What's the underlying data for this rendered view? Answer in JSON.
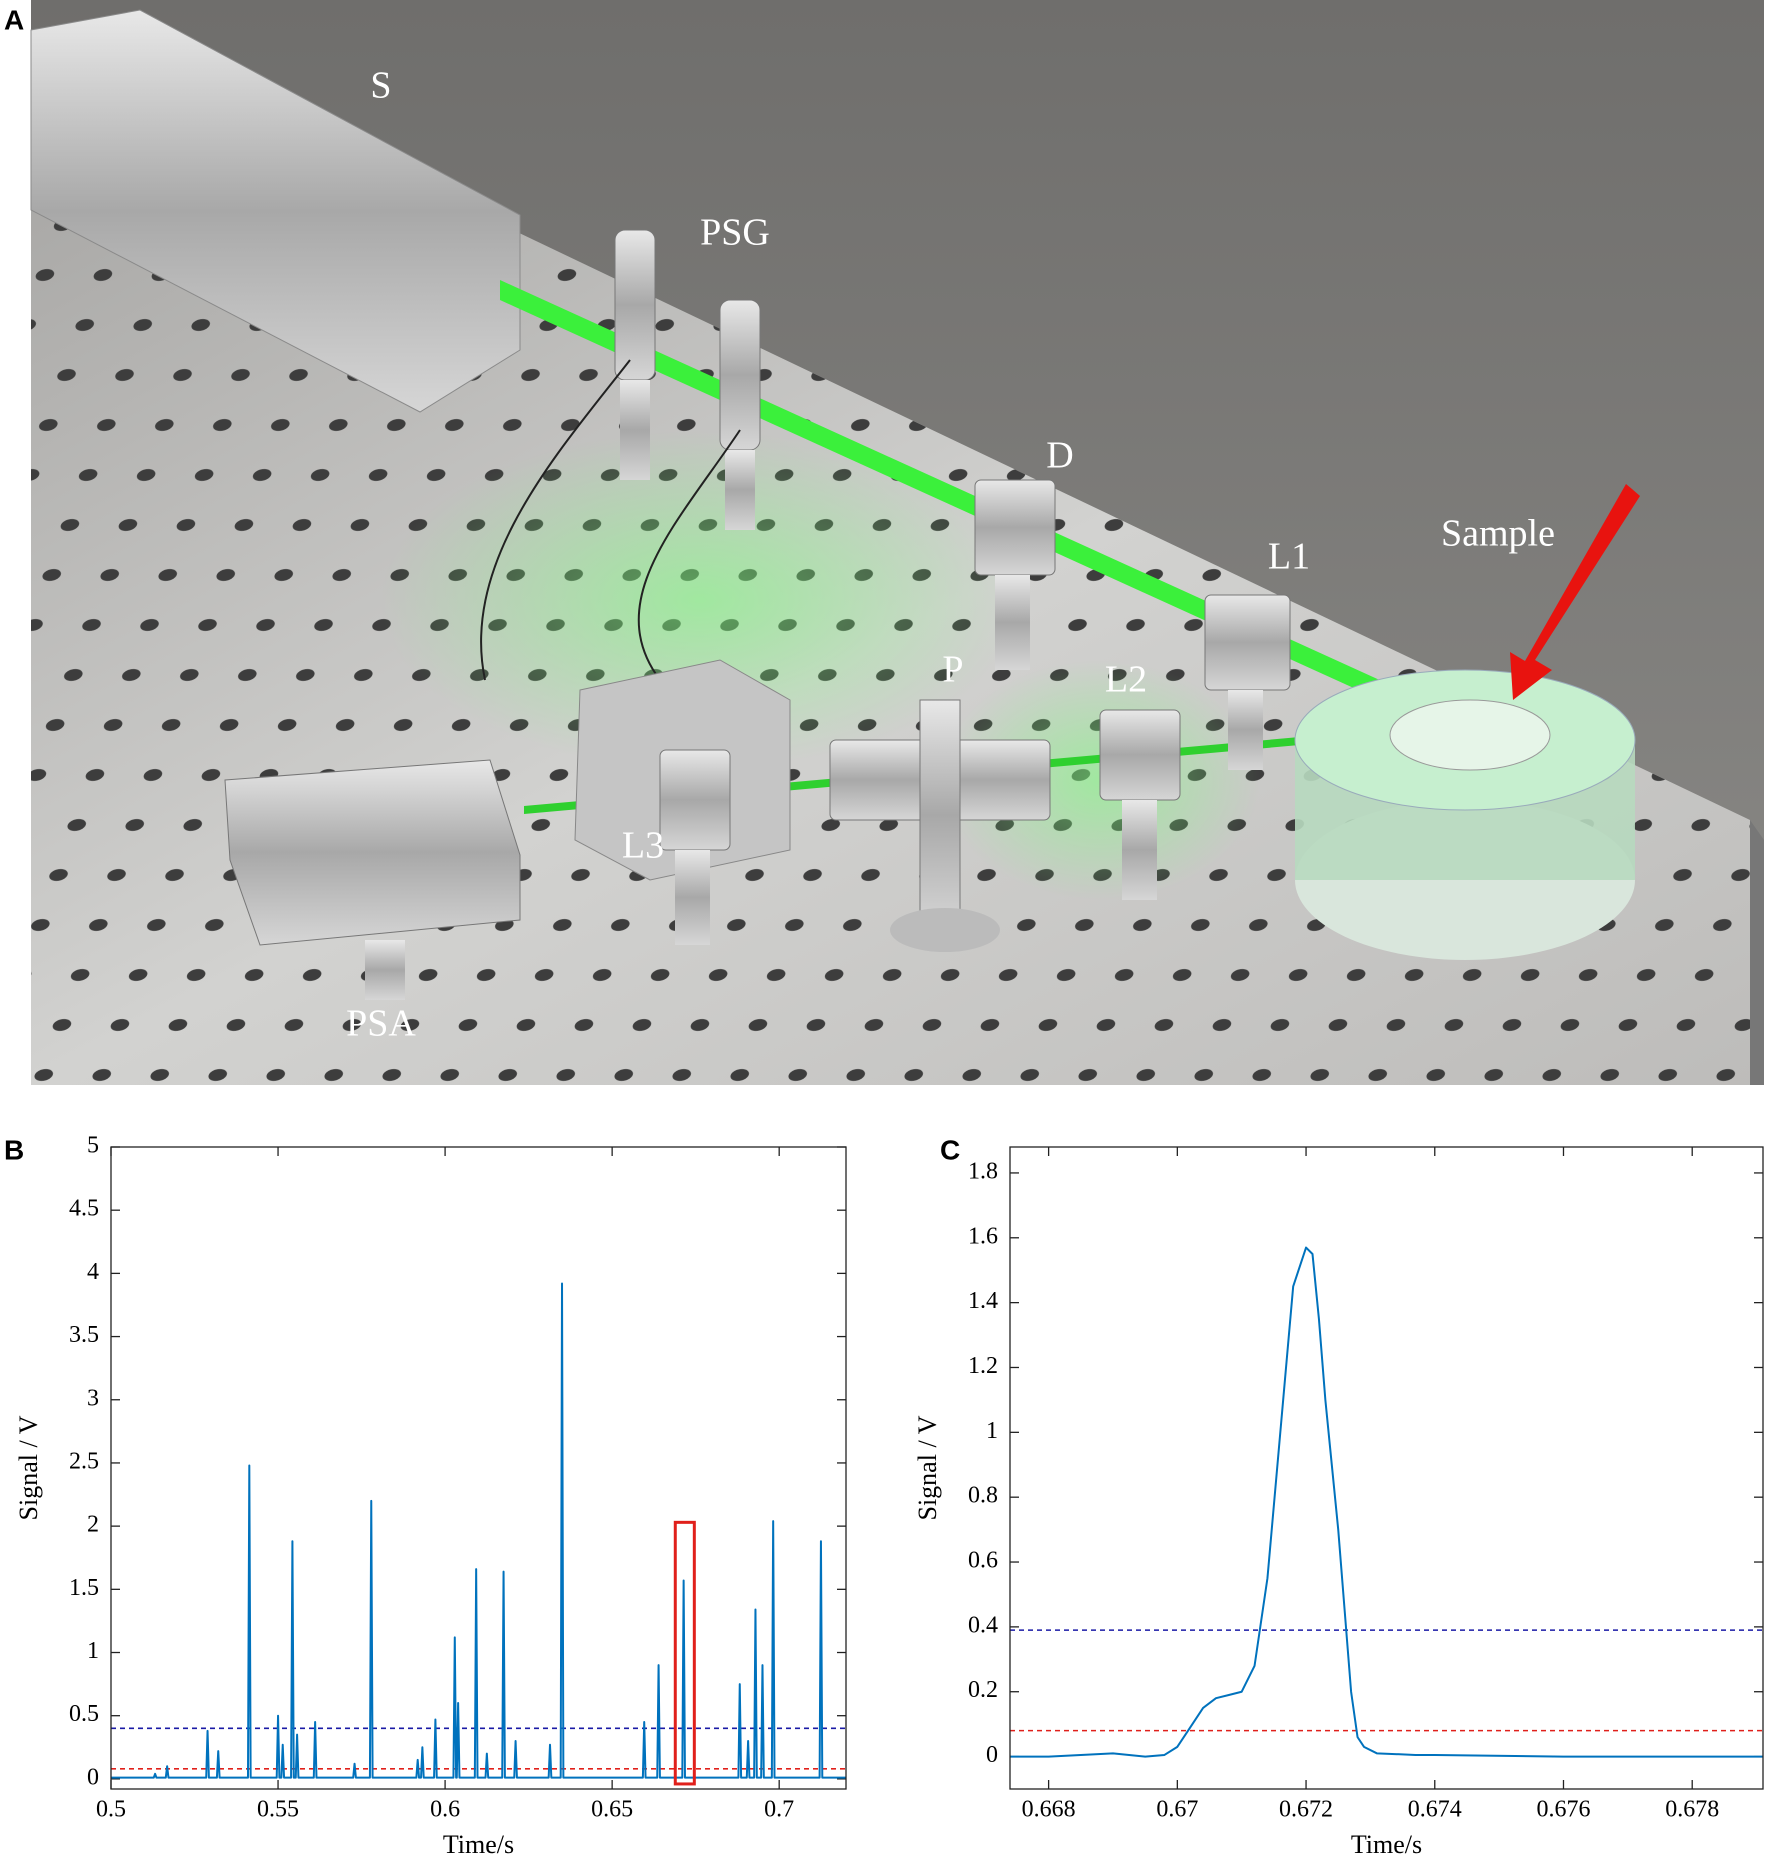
{
  "figure": {
    "panels": [
      "A",
      "B",
      "C"
    ],
    "scene": {
      "source": "S",
      "generator": "PSG",
      "diaphragm": "D",
      "lens1": "L1",
      "sample": "Sample",
      "polarizer": "P",
      "lens2": "L2",
      "lens3": "L3",
      "analyzer": "PSA"
    }
  },
  "chart_data": [
    {
      "type": "line",
      "xlabel": "Time/s",
      "ylabel": "Signal / V",
      "xlim": [
        0.5,
        0.72
      ],
      "ylim": [
        -0.08,
        5
      ],
      "xticks": [
        0.5,
        0.55,
        0.6,
        0.65,
        0.7
      ],
      "yticks": [
        0,
        0.5,
        1,
        1.5,
        2,
        2.5,
        3,
        3.5,
        4,
        4.5,
        5
      ],
      "color": "#0072bd",
      "x": [
        0.5,
        0.5128,
        0.5132,
        0.5136,
        0.5164,
        0.5168,
        0.5172,
        0.5285,
        0.5289,
        0.5293,
        0.5317,
        0.5321,
        0.5325,
        0.541,
        0.5414,
        0.5418,
        0.5496,
        0.55,
        0.5504,
        0.551,
        0.5514,
        0.5518,
        0.5539,
        0.5543,
        0.5547,
        0.5553,
        0.5557,
        0.5561,
        0.5607,
        0.5611,
        0.5615,
        0.5725,
        0.5729,
        0.5733,
        0.5775,
        0.5779,
        0.5783,
        0.5914,
        0.5918,
        0.5922,
        0.5928,
        0.5932,
        0.5936,
        0.5967,
        0.5971,
        0.5975,
        0.6025,
        0.6029,
        0.6033,
        0.6035,
        0.6039,
        0.6043,
        0.6089,
        0.6093,
        0.6097,
        0.6121,
        0.6125,
        0.6129,
        0.6171,
        0.6175,
        0.6179,
        0.6207,
        0.6211,
        0.6215,
        0.631,
        0.6314,
        0.6318,
        0.6346,
        0.635,
        0.6354,
        0.6592,
        0.6596,
        0.66,
        0.6635,
        0.6639,
        0.6643,
        0.671,
        0.6714,
        0.6718,
        0.6878,
        0.6882,
        0.6886,
        0.6903,
        0.6907,
        0.6911,
        0.6925,
        0.6929,
        0.6933,
        0.6946,
        0.695,
        0.6954,
        0.6978,
        0.6982,
        0.6986,
        0.7121,
        0.7125,
        0.7129,
        0.72
      ],
      "values": [
        0.01,
        0.01,
        0.04,
        0.01,
        0.01,
        0.1,
        0.01,
        0.01,
        0.38,
        0.01,
        0.01,
        0.22,
        0.01,
        0.01,
        2.48,
        0.01,
        0.01,
        0.5,
        0.01,
        0.01,
        0.27,
        0.01,
        0.01,
        1.88,
        0.01,
        0.01,
        0.35,
        0.01,
        0.01,
        0.45,
        0.01,
        0.01,
        0.12,
        0.01,
        0.01,
        2.2,
        0.01,
        0.01,
        0.15,
        0.01,
        0.01,
        0.25,
        0.01,
        0.01,
        0.47,
        0.01,
        0.01,
        1.12,
        0.01,
        0.01,
        0.6,
        0.01,
        0.01,
        1.66,
        0.01,
        0.01,
        0.2,
        0.01,
        0.01,
        1.64,
        0.01,
        0.01,
        0.3,
        0.01,
        0.01,
        0.27,
        0.01,
        0.01,
        3.92,
        0.01,
        0.01,
        0.45,
        0.01,
        0.01,
        0.9,
        0.01,
        0.01,
        1.57,
        0.01,
        0.01,
        0.75,
        0.01,
        0.01,
        0.3,
        0.01,
        0.01,
        1.34,
        0.01,
        0.01,
        0.9,
        0.01,
        0.01,
        2.04,
        0.01,
        0.01,
        1.88,
        0.01,
        0.01
      ],
      "hlines": [
        {
          "value": 0.4,
          "color": "#1a1aa6"
        },
        {
          "value": 0.08,
          "color": "#e0201b"
        }
      ],
      "highlight": {
        "x": [
          0.6689,
          0.6746
        ],
        "y": [
          -0.04,
          2.03
        ],
        "color": "#e0201b"
      }
    },
    {
      "type": "line",
      "xlabel": "Time/s",
      "ylabel": "Signal / V",
      "xlim": [
        0.6674,
        0.6791
      ],
      "ylim": [
        -0.1,
        1.88
      ],
      "xticks": [
        0.668,
        0.67,
        0.672,
        0.674,
        0.676,
        0.678
      ],
      "yticks": [
        0,
        0.2,
        0.4,
        0.6,
        0.8,
        1,
        1.2,
        1.4,
        1.6,
        1.8
      ],
      "color": "#0072bd",
      "x": [
        0.6674,
        0.668,
        0.669,
        0.6695,
        0.6698,
        0.67,
        0.6702,
        0.6704,
        0.6706,
        0.6708,
        0.671,
        0.6712,
        0.6714,
        0.6716,
        0.6718,
        0.672,
        0.6721,
        0.6722,
        0.6723,
        0.6724,
        0.6725,
        0.6726,
        0.6727,
        0.6728,
        0.6729,
        0.6731,
        0.6737,
        0.674,
        0.676,
        0.678,
        0.6791
      ],
      "values": [
        0.0,
        0.0,
        0.01,
        0.0,
        0.005,
        0.03,
        0.09,
        0.15,
        0.18,
        0.19,
        0.2,
        0.28,
        0.55,
        1.0,
        1.45,
        1.57,
        1.55,
        1.35,
        1.1,
        0.9,
        0.7,
        0.45,
        0.2,
        0.06,
        0.03,
        0.01,
        0.005,
        0.005,
        0.0,
        0.0,
        0.0
      ],
      "hlines": [
        {
          "value": 0.39,
          "color": "#1a1aa6"
        },
        {
          "value": 0.08,
          "color": "#e0201b"
        }
      ]
    }
  ]
}
